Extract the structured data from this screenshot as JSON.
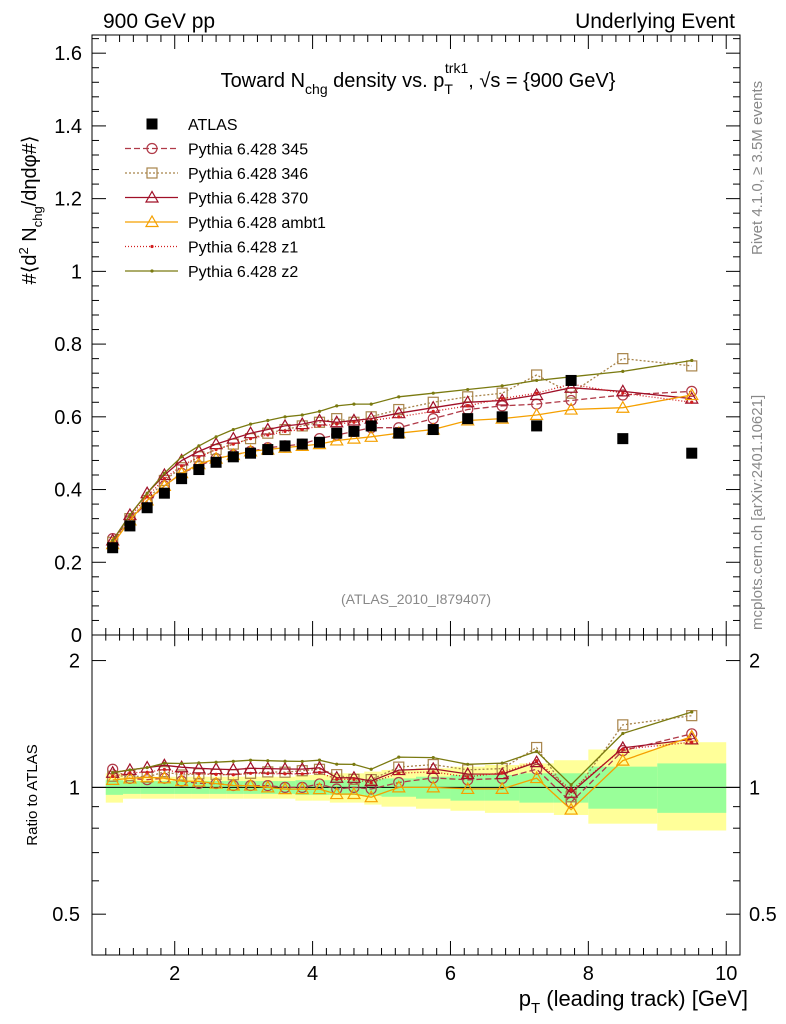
{
  "header": {
    "left": "900 GeV pp",
    "right": "Underlying Event"
  },
  "side_labels": {
    "top": "Rivet 4.1.0, ≥ 3.5M events",
    "bottom": "mcplots.cern.ch [arXiv:2401.10621]"
  },
  "analysis_id": "(ATLAS_2010_I879407)",
  "chart_data": {
    "type": "line",
    "title": "Toward N_chg density vs. p_T^trk1, √s = {900 GeV}",
    "title_parts": {
      "pre": "Toward N",
      "sub1": "chg",
      "mid": " density vs. p",
      "sub2": "T",
      "sup2": "trk1",
      "post": ", √s = {900 GeV}"
    },
    "xlabel": "p_T (leading track) [GeV]",
    "xlabel_parts": {
      "pre": "p",
      "sub": "T",
      "post": " (leading track) [GeV]"
    },
    "ylabel": "#⟨d² N_chg/dηdφ#⟩",
    "ylabel_parts": {
      "a": "#⟨d",
      "b": "2",
      "c": " N",
      "d": "chg",
      "e": "/dηdφ#⟩"
    },
    "ratio_ylabel": "Ratio to ATLAS",
    "xlim": [
      0.8,
      10.2
    ],
    "ylim": [
      0,
      1.65
    ],
    "ratio_ylim": [
      0.4,
      2.3
    ],
    "x_ticks": [
      "2",
      "4",
      "6",
      "8",
      "10"
    ],
    "y_ticks": [
      "0",
      "0.2",
      "0.4",
      "0.6",
      "0.8",
      "1",
      "1.2",
      "1.4",
      "1.6"
    ],
    "ratio_ticks": [
      "0.5",
      "1",
      "2"
    ],
    "x": [
      1.1,
      1.35,
      1.6,
      1.85,
      2.1,
      2.35,
      2.6,
      2.85,
      3.1,
      3.35,
      3.6,
      3.85,
      4.1,
      4.35,
      4.6,
      4.85,
      5.25,
      5.75,
      6.25,
      6.75,
      7.25,
      7.75,
      8.5,
      9.5
    ],
    "bin_edges": [
      1.0,
      1.25,
      1.5,
      1.75,
      2.0,
      2.25,
      2.5,
      2.75,
      3.0,
      3.25,
      3.5,
      3.75,
      4.0,
      4.25,
      4.5,
      4.75,
      5.0,
      5.5,
      6.0,
      6.5,
      7.0,
      7.5,
      8.0,
      9.0,
      10.0
    ],
    "band_yellow": [
      [
        0.92,
        1.08
      ],
      [
        0.94,
        1.06
      ],
      [
        0.94,
        1.06
      ],
      [
        0.94,
        1.06
      ],
      [
        0.94,
        1.06
      ],
      [
        0.94,
        1.06
      ],
      [
        0.94,
        1.06
      ],
      [
        0.94,
        1.06
      ],
      [
        0.94,
        1.06
      ],
      [
        0.94,
        1.06
      ],
      [
        0.94,
        1.06
      ],
      [
        0.93,
        1.07
      ],
      [
        0.93,
        1.07
      ],
      [
        0.92,
        1.08
      ],
      [
        0.92,
        1.08
      ],
      [
        0.91,
        1.09
      ],
      [
        0.9,
        1.1
      ],
      [
        0.89,
        1.11
      ],
      [
        0.88,
        1.12
      ],
      [
        0.87,
        1.13
      ],
      [
        0.87,
        1.14
      ],
      [
        0.86,
        1.16
      ],
      [
        0.82,
        1.23
      ],
      [
        0.79,
        1.28
      ]
    ],
    "band_green": [
      [
        0.96,
        1.04
      ],
      [
        0.965,
        1.035
      ],
      [
        0.965,
        1.035
      ],
      [
        0.965,
        1.035
      ],
      [
        0.965,
        1.035
      ],
      [
        0.965,
        1.035
      ],
      [
        0.965,
        1.035
      ],
      [
        0.965,
        1.035
      ],
      [
        0.965,
        1.035
      ],
      [
        0.965,
        1.035
      ],
      [
        0.965,
        1.035
      ],
      [
        0.96,
        1.04
      ],
      [
        0.96,
        1.04
      ],
      [
        0.96,
        1.04
      ],
      [
        0.96,
        1.04
      ],
      [
        0.955,
        1.045
      ],
      [
        0.95,
        1.05
      ],
      [
        0.94,
        1.06
      ],
      [
        0.93,
        1.07
      ],
      [
        0.93,
        1.07
      ],
      [
        0.92,
        1.08
      ],
      [
        0.92,
        1.08
      ],
      [
        0.89,
        1.12
      ],
      [
        0.87,
        1.14
      ]
    ],
    "series": [
      {
        "name": "ATLAS",
        "label": "ATLAS",
        "color": "#000000",
        "marker": "square_filled",
        "dash": "",
        "values": [
          0.24,
          0.3,
          0.35,
          0.39,
          0.43,
          0.455,
          0.475,
          0.49,
          0.5,
          0.51,
          0.52,
          0.525,
          0.53,
          0.555,
          0.56,
          0.575,
          0.555,
          0.565,
          0.595,
          0.6,
          0.575,
          0.7,
          0.54,
          0.5
        ]
      },
      {
        "name": "Pythia 6.428 345",
        "label": "Pythia 6.428 345",
        "color": "#b03a48",
        "marker": "circle_open",
        "dash": "6,3",
        "values": [
          0.265,
          0.315,
          0.365,
          0.41,
          0.445,
          0.465,
          0.485,
          0.495,
          0.505,
          0.515,
          0.52,
          0.525,
          0.54,
          0.55,
          0.56,
          0.57,
          0.57,
          0.595,
          0.62,
          0.63,
          0.635,
          0.645,
          0.66,
          0.67
        ]
      },
      {
        "name": "Pythia 6.428 346",
        "label": "Pythia 6.428 346",
        "color": "#a8844a",
        "marker": "square_open",
        "dash": "2,2",
        "values": [
          0.255,
          0.32,
          0.37,
          0.425,
          0.46,
          0.49,
          0.51,
          0.525,
          0.54,
          0.555,
          0.565,
          0.575,
          0.585,
          0.595,
          0.585,
          0.6,
          0.62,
          0.64,
          0.655,
          0.665,
          0.715,
          0.665,
          0.76,
          0.74
        ]
      },
      {
        "name": "Pythia 6.428 370",
        "label": "Pythia 6.428 370",
        "color": "#a01028",
        "marker": "triangle_open",
        "dash": "",
        "values": [
          0.26,
          0.33,
          0.39,
          0.44,
          0.48,
          0.505,
          0.525,
          0.54,
          0.555,
          0.565,
          0.575,
          0.58,
          0.59,
          0.585,
          0.59,
          0.595,
          0.61,
          0.625,
          0.64,
          0.645,
          0.66,
          0.68,
          0.67,
          0.65
        ]
      },
      {
        "name": "Pythia 6.428 ambt1",
        "label": "Pythia 6.428 ambt1",
        "color": "#f5a000",
        "marker": "triangle_open",
        "dash": "",
        "values": [
          0.25,
          0.315,
          0.37,
          0.41,
          0.445,
          0.47,
          0.485,
          0.495,
          0.505,
          0.51,
          0.515,
          0.52,
          0.525,
          0.535,
          0.54,
          0.545,
          0.555,
          0.565,
          0.59,
          0.595,
          0.605,
          0.62,
          0.625,
          0.66
        ]
      },
      {
        "name": "Pythia 6.428 z1",
        "label": "Pythia 6.428 z1",
        "color": "#d21e1e",
        "marker": "dot",
        "dash": "1,2",
        "values": [
          0.255,
          0.325,
          0.38,
          0.43,
          0.465,
          0.49,
          0.51,
          0.525,
          0.54,
          0.55,
          0.56,
          0.565,
          0.575,
          0.58,
          0.585,
          0.59,
          0.6,
          0.615,
          0.63,
          0.65,
          0.665,
          0.69,
          0.665,
          0.64
        ]
      },
      {
        "name": "Pythia 6.428 z2",
        "label": "Pythia 6.428 z2",
        "color": "#7a7a10",
        "marker": "dot",
        "dash": "",
        "values": [
          0.26,
          0.33,
          0.39,
          0.445,
          0.49,
          0.52,
          0.545,
          0.565,
          0.58,
          0.59,
          0.6,
          0.605,
          0.615,
          0.63,
          0.635,
          0.635,
          0.655,
          0.665,
          0.675,
          0.685,
          0.7,
          0.71,
          0.725,
          0.755
        ]
      }
    ],
    "legend_position": "top-left"
  }
}
